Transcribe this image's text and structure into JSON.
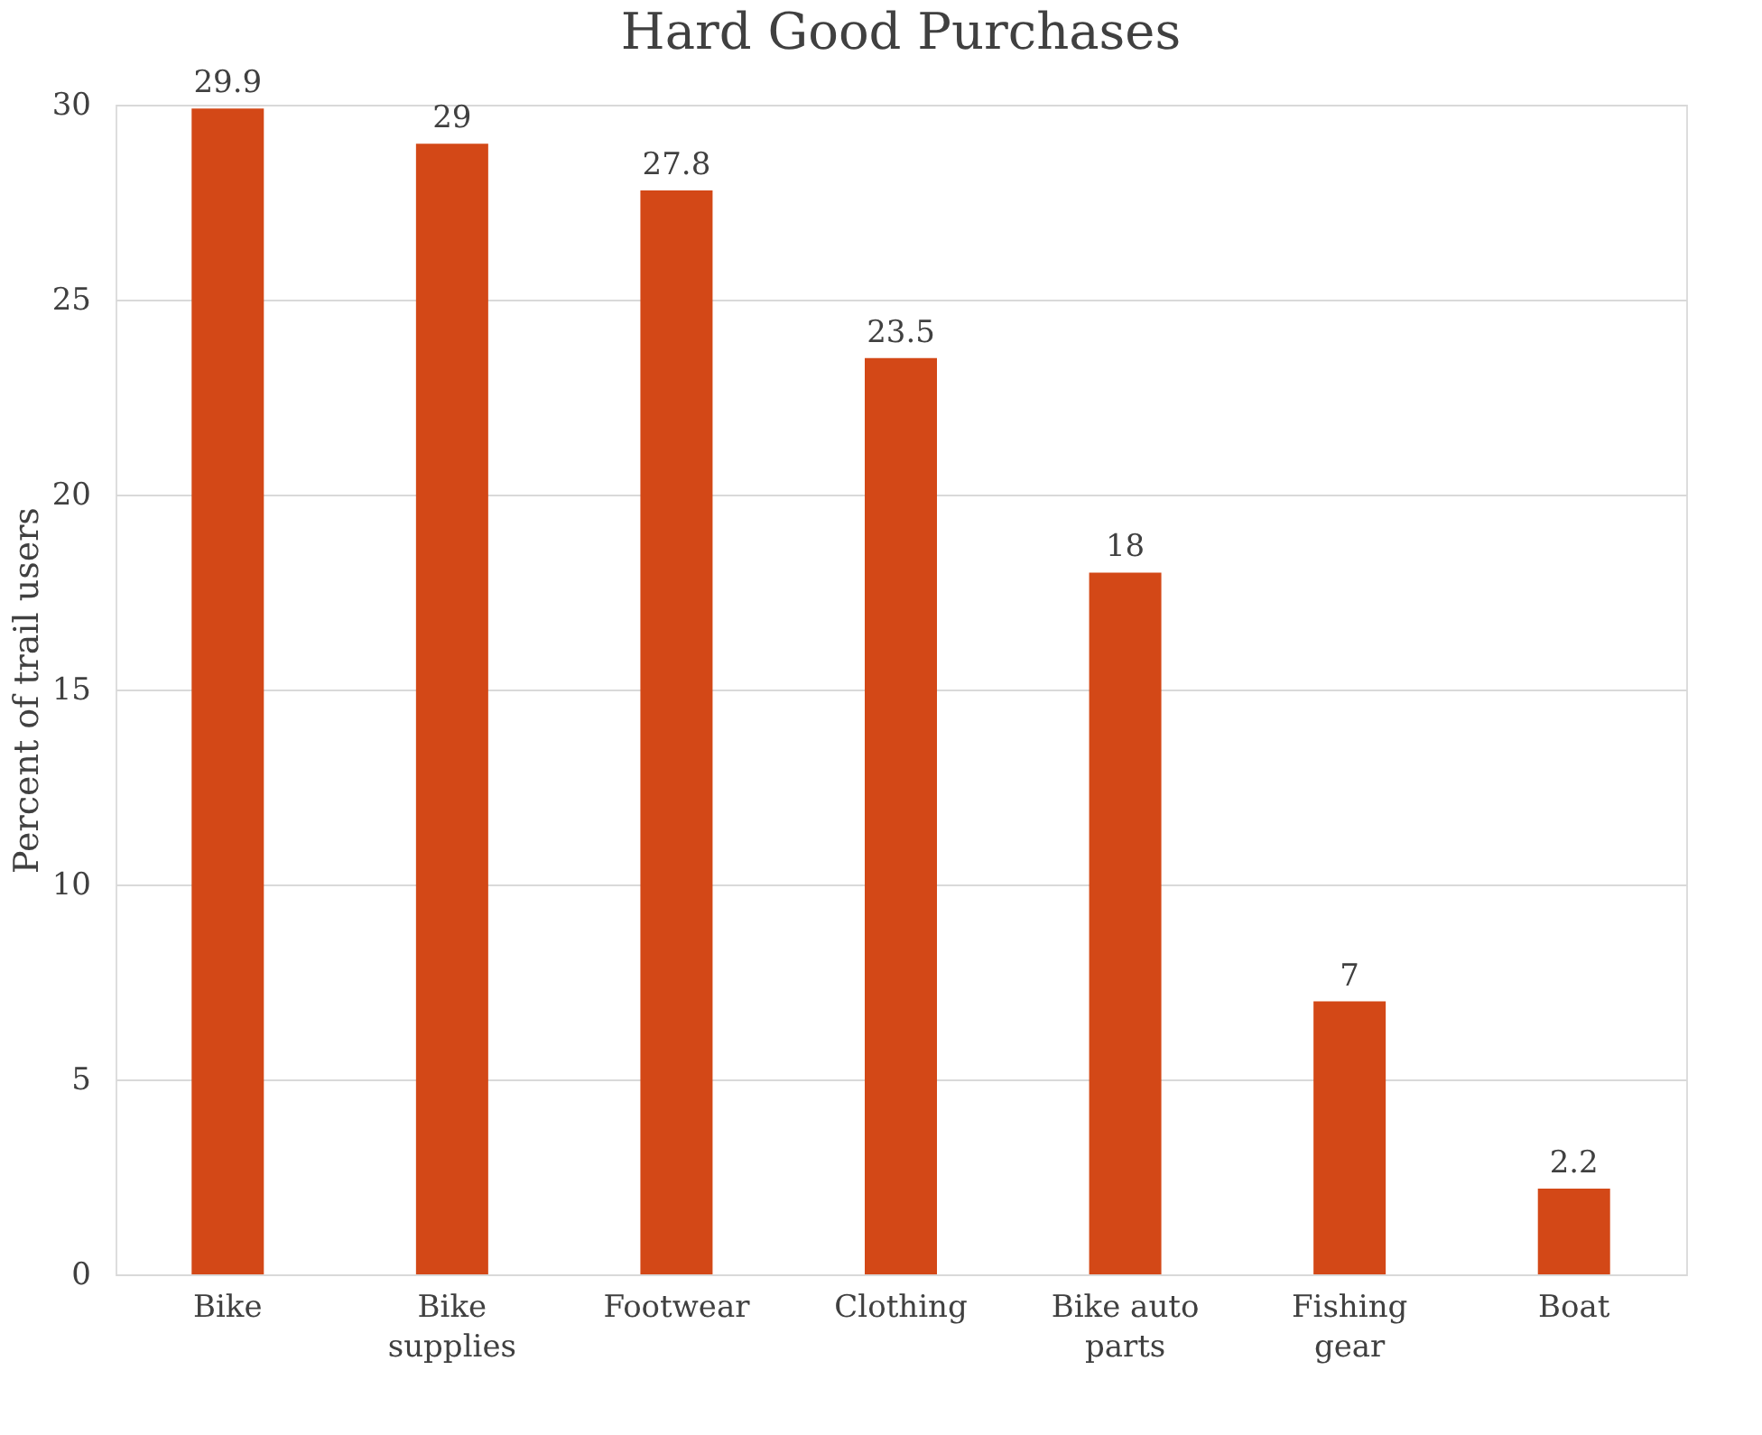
{
  "chart_data": {
    "type": "bar",
    "title": "Hard Good Purchases",
    "ylabel": "Percent of trail users",
    "categories": [
      "Bike",
      "Bike supplies",
      "Footwear",
      "Clothing",
      "Bike auto parts",
      "Fishing gear",
      "Boat"
    ],
    "values": [
      29.9,
      29,
      27.8,
      23.5,
      18,
      7,
      2.2
    ],
    "color": "#d34817",
    "ylim": [
      0,
      30
    ],
    "yticks": [
      0,
      5,
      10,
      15,
      20,
      25,
      30
    ],
    "grid": "y",
    "data_labels": true
  }
}
